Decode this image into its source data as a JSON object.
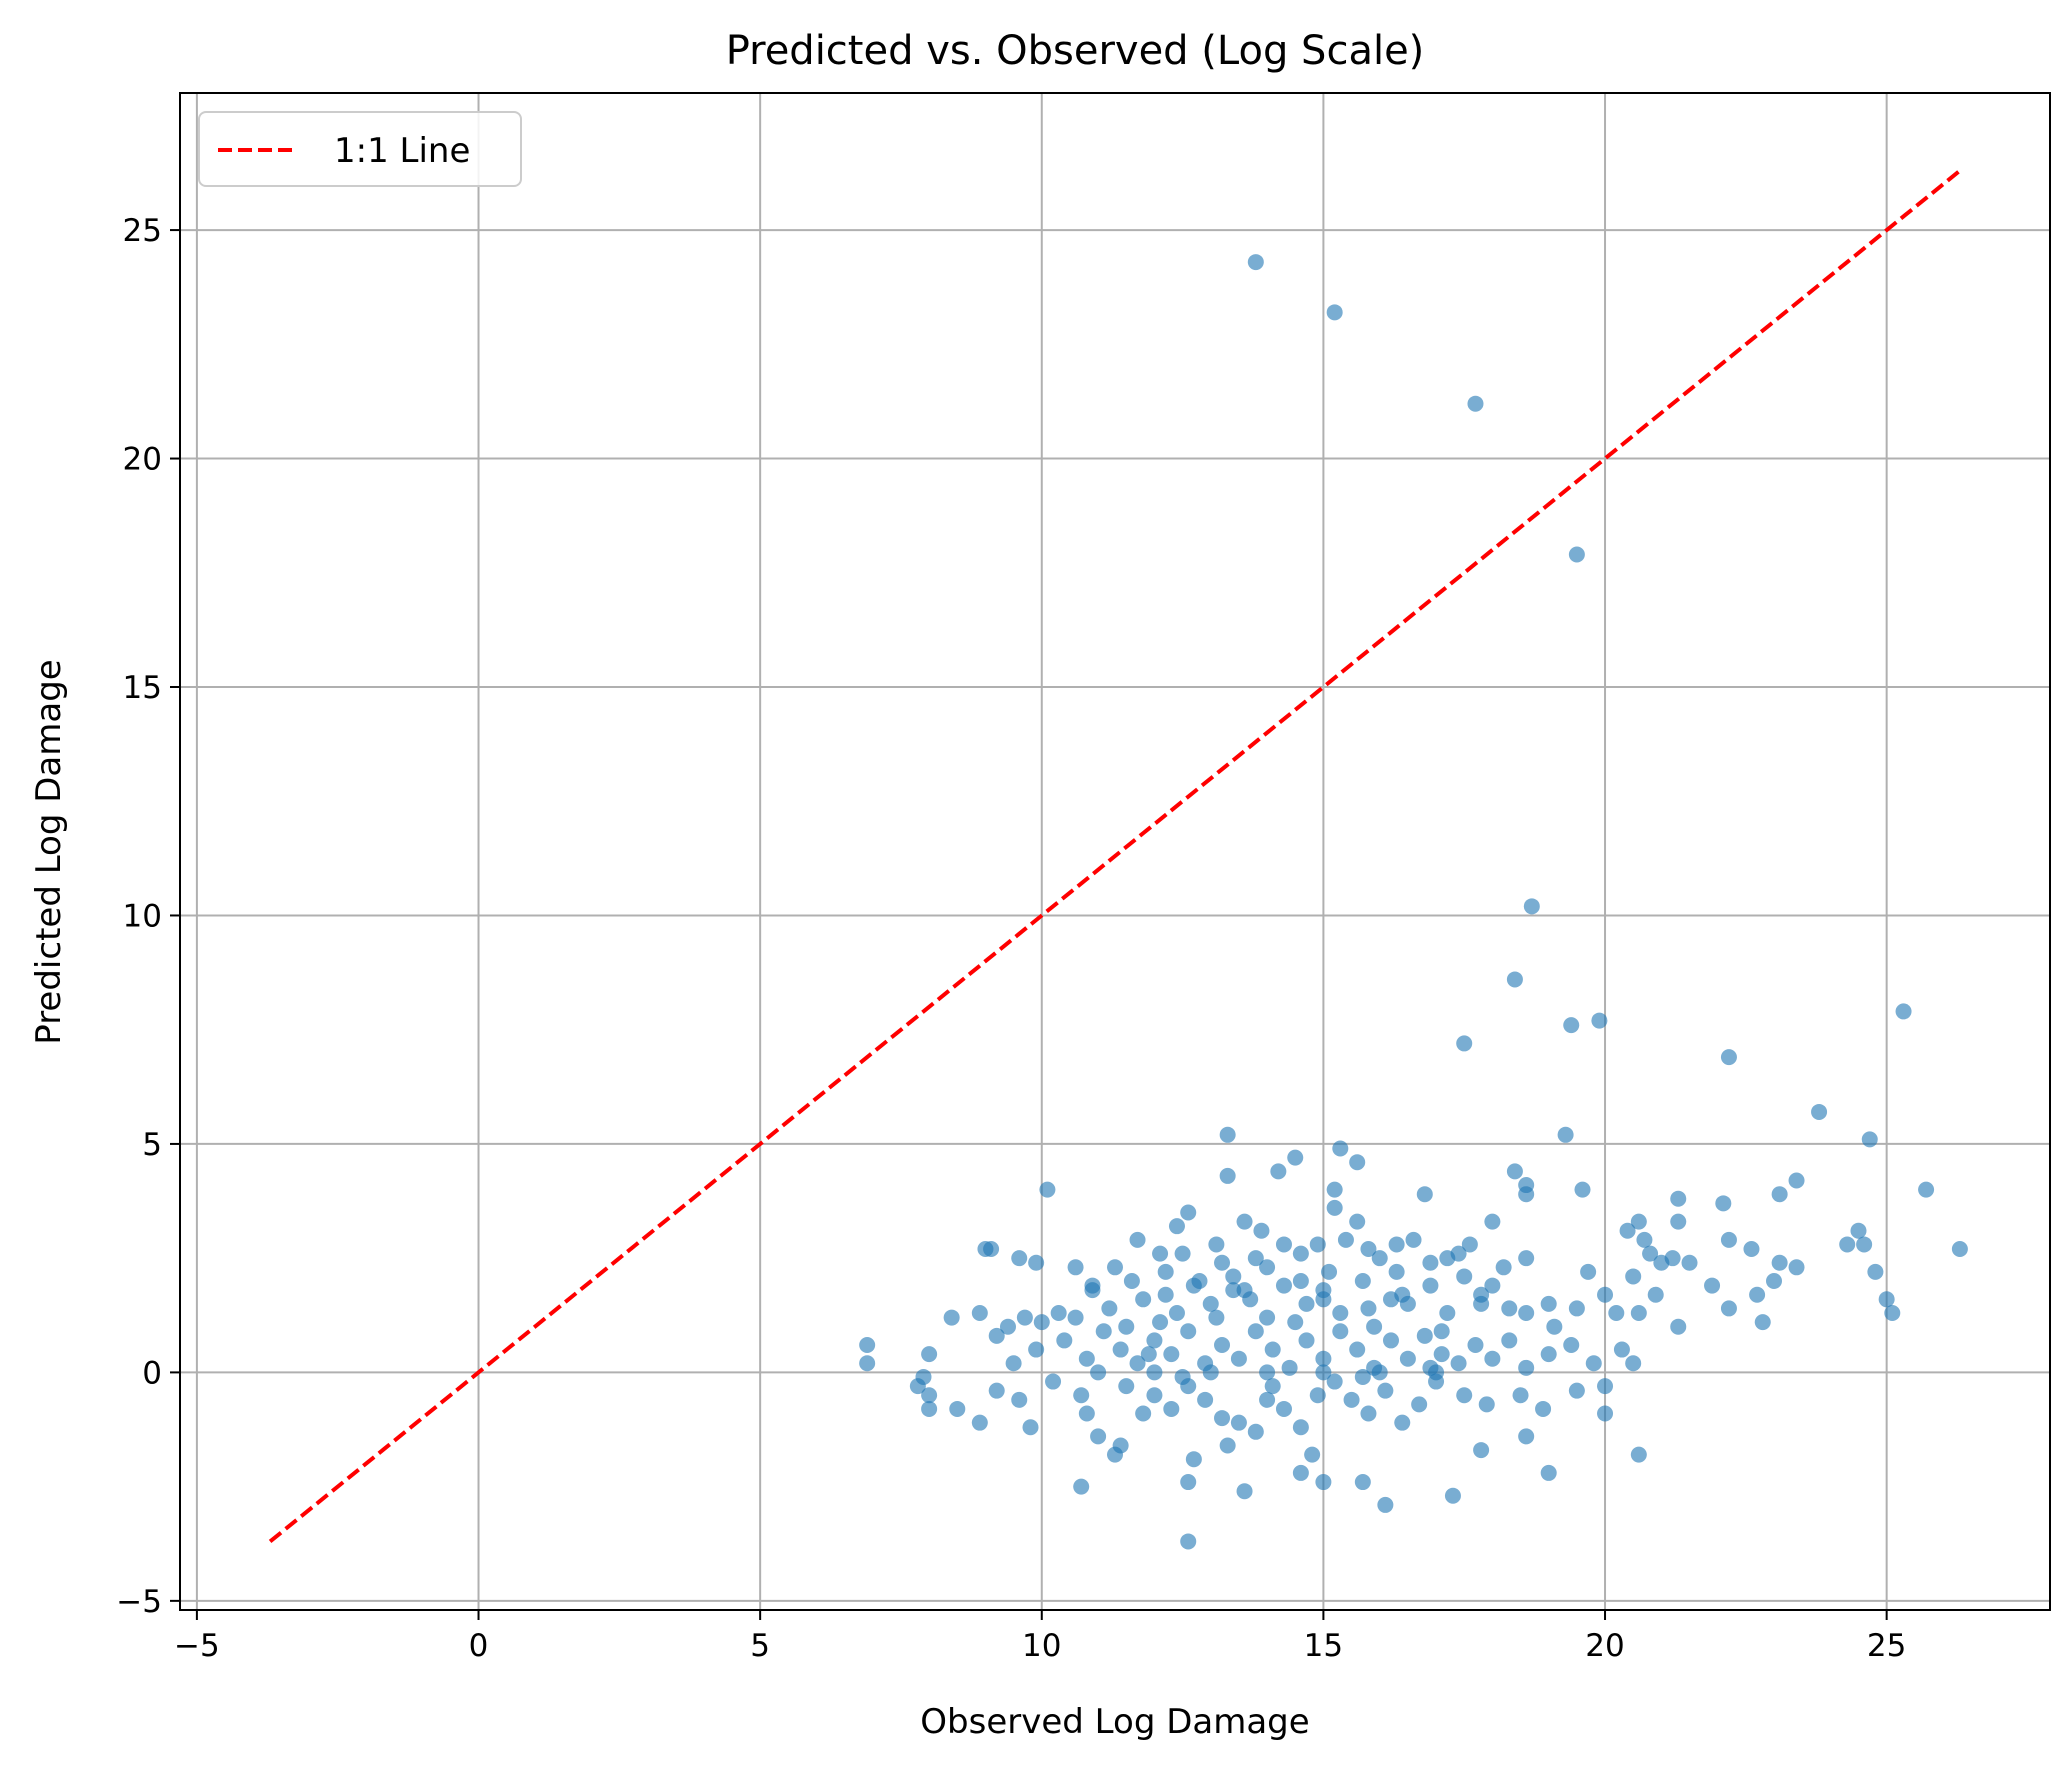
{
  "chart_data": {
    "type": "scatter",
    "title": "Predicted vs. Observed (Log Scale)",
    "xlabel": "Observed Log Damage",
    "ylabel": "Predicted Log Damage",
    "xlim": [
      -5.3,
      27.9
    ],
    "ylim": [
      -5.2,
      28.0
    ],
    "xticks": [
      -5,
      0,
      5,
      10,
      15,
      20,
      25
    ],
    "yticks": [
      -5,
      0,
      5,
      10,
      15,
      20,
      25
    ],
    "grid": true,
    "legend_position": "top-left",
    "reference_line": {
      "name": "1:1 Line",
      "color": "#ff0000",
      "style": "dashed",
      "x": [
        -3.7,
        26.3
      ],
      "y": [
        -3.7,
        26.3
      ]
    },
    "point_color": "#1f77b4",
    "point_alpha": 0.6,
    "series": [
      {
        "values": [
          [
            13.8,
            24.3
          ],
          [
            15.2,
            23.2
          ],
          [
            17.7,
            21.2
          ],
          [
            19.5,
            17.9
          ],
          [
            18.7,
            10.2
          ],
          [
            18.4,
            8.6
          ],
          [
            19.4,
            7.6
          ],
          [
            19.9,
            7.7
          ],
          [
            17.5,
            7.2
          ],
          [
            22.2,
            6.9
          ],
          [
            25.3,
            7.9
          ],
          [
            23.8,
            5.7
          ],
          [
            24.7,
            5.1
          ],
          [
            19.3,
            5.2
          ],
          [
            13.3,
            5.2
          ],
          [
            15.3,
            4.9
          ],
          [
            14.5,
            4.7
          ],
          [
            15.6,
            4.6
          ],
          [
            14.2,
            4.4
          ],
          [
            13.3,
            4.3
          ],
          [
            18.4,
            4.4
          ],
          [
            18.6,
            4.1
          ],
          [
            19.6,
            4.0
          ],
          [
            15.2,
            4.0
          ],
          [
            10.1,
            4.0
          ],
          [
            23.4,
            4.2
          ],
          [
            25.7,
            4.0
          ],
          [
            22.1,
            3.7
          ],
          [
            23.1,
            3.9
          ],
          [
            16.8,
            3.9
          ],
          [
            21.3,
            3.8
          ],
          [
            18.6,
            3.9
          ],
          [
            15.2,
            3.6
          ],
          [
            12.6,
            3.5
          ],
          [
            13.6,
            3.3
          ],
          [
            12.4,
            3.2
          ],
          [
            18.0,
            3.3
          ],
          [
            20.6,
            3.3
          ],
          [
            20.4,
            3.1
          ],
          [
            21.3,
            3.3
          ],
          [
            24.5,
            3.1
          ],
          [
            24.3,
            2.8
          ],
          [
            24.6,
            2.8
          ],
          [
            26.3,
            2.7
          ],
          [
            22.6,
            2.7
          ],
          [
            23.4,
            2.3
          ],
          [
            23.1,
            2.4
          ],
          [
            22.2,
            2.9
          ],
          [
            18.2,
            2.3
          ],
          [
            19.7,
            2.2
          ],
          [
            18.6,
            2.5
          ],
          [
            17.6,
            2.8
          ],
          [
            17.2,
            2.5
          ],
          [
            16.3,
            2.8
          ],
          [
            15.6,
            3.3
          ],
          [
            15.8,
            2.7
          ],
          [
            14.9,
            2.8
          ],
          [
            14.3,
            2.8
          ],
          [
            13.8,
            2.5
          ],
          [
            13.2,
            2.4
          ],
          [
            12.1,
            2.6
          ],
          [
            11.7,
            2.9
          ],
          [
            10.6,
            2.3
          ],
          [
            9.9,
            2.4
          ],
          [
            9.1,
            2.7
          ],
          [
            9.6,
            2.5
          ],
          [
            9.0,
            2.7
          ],
          [
            21.2,
            2.5
          ],
          [
            20.8,
            2.6
          ],
          [
            21.0,
            2.4
          ],
          [
            21.5,
            2.4
          ],
          [
            20.7,
            2.9
          ],
          [
            20.5,
            2.1
          ],
          [
            24.8,
            2.2
          ],
          [
            22.7,
            1.7
          ],
          [
            23.0,
            2.0
          ],
          [
            22.2,
            1.4
          ],
          [
            22.8,
            1.1
          ],
          [
            25.0,
            1.6
          ],
          [
            25.1,
            1.3
          ],
          [
            21.3,
            1.0
          ],
          [
            21.9,
            1.9
          ],
          [
            20.6,
            1.3
          ],
          [
            20.9,
            1.7
          ],
          [
            20.0,
            1.7
          ],
          [
            20.2,
            1.3
          ],
          [
            19.5,
            1.4
          ],
          [
            19.1,
            1.0
          ],
          [
            19.0,
            1.5
          ],
          [
            18.6,
            1.3
          ],
          [
            18.3,
            1.4
          ],
          [
            17.8,
            1.7
          ],
          [
            17.2,
            1.3
          ],
          [
            16.9,
            1.9
          ],
          [
            16.5,
            1.5
          ],
          [
            16.2,
            1.6
          ],
          [
            15.8,
            1.4
          ],
          [
            15.3,
            1.3
          ],
          [
            15.0,
            1.8
          ],
          [
            14.7,
            1.5
          ],
          [
            14.3,
            1.9
          ],
          [
            14.0,
            1.2
          ],
          [
            13.7,
            1.6
          ],
          [
            13.4,
            1.8
          ],
          [
            13.0,
            1.5
          ],
          [
            12.7,
            1.9
          ],
          [
            12.4,
            1.3
          ],
          [
            12.1,
            1.1
          ],
          [
            11.8,
            1.6
          ],
          [
            11.5,
            1.0
          ],
          [
            11.2,
            1.4
          ],
          [
            10.9,
            1.8
          ],
          [
            10.6,
            1.2
          ],
          [
            10.3,
            1.3
          ],
          [
            10.0,
            1.1
          ],
          [
            9.7,
            1.2
          ],
          [
            9.4,
            1.0
          ],
          [
            8.9,
            1.3
          ],
          [
            8.4,
            1.2
          ],
          [
            8.0,
            0.4
          ],
          [
            6.9,
            0.6
          ],
          [
            6.9,
            0.2
          ],
          [
            7.9,
            -0.1
          ],
          [
            7.8,
            -0.3
          ],
          [
            8.0,
            -0.5
          ],
          [
            8.0,
            -0.8
          ],
          [
            8.5,
            -0.8
          ],
          [
            8.9,
            -1.1
          ],
          [
            9.2,
            -0.4
          ],
          [
            9.6,
            -0.6
          ],
          [
            9.8,
            -1.2
          ],
          [
            10.2,
            -0.2
          ],
          [
            10.7,
            -0.5
          ],
          [
            10.8,
            -0.9
          ],
          [
            11.0,
            -1.4
          ],
          [
            11.4,
            -1.6
          ],
          [
            11.5,
            -0.3
          ],
          [
            11.8,
            -0.9
          ],
          [
            12.0,
            -0.5
          ],
          [
            12.3,
            -0.8
          ],
          [
            12.6,
            -0.3
          ],
          [
            12.9,
            -0.6
          ],
          [
            13.2,
            -1.0
          ],
          [
            13.5,
            -1.1
          ],
          [
            13.8,
            -1.3
          ],
          [
            14.0,
            -0.6
          ],
          [
            14.3,
            -0.8
          ],
          [
            14.6,
            -1.2
          ],
          [
            14.9,
            -0.5
          ],
          [
            15.2,
            -0.2
          ],
          [
            15.5,
            -0.6
          ],
          [
            15.8,
            -0.9
          ],
          [
            16.1,
            -0.4
          ],
          [
            16.4,
            -1.1
          ],
          [
            16.7,
            -0.7
          ],
          [
            17.0,
            -0.2
          ],
          [
            17.5,
            -0.5
          ],
          [
            17.9,
            -0.7
          ],
          [
            18.5,
            -0.5
          ],
          [
            18.9,
            -0.8
          ],
          [
            19.5,
            -0.4
          ],
          [
            20.0,
            -0.3
          ],
          [
            20.0,
            -0.9
          ],
          [
            10.7,
            -2.5
          ],
          [
            11.3,
            -1.8
          ],
          [
            12.6,
            -2.4
          ],
          [
            12.6,
            -3.7
          ],
          [
            13.6,
            -2.6
          ],
          [
            14.6,
            -2.2
          ],
          [
            15.0,
            -2.4
          ],
          [
            15.7,
            -2.4
          ],
          [
            16.1,
            -2.9
          ],
          [
            17.3,
            -2.7
          ],
          [
            17.8,
            -1.7
          ],
          [
            18.6,
            -1.4
          ],
          [
            19.0,
            -2.2
          ],
          [
            20.6,
            -1.8
          ],
          [
            14.8,
            -1.8
          ],
          [
            13.3,
            -1.6
          ],
          [
            12.7,
            -1.9
          ],
          [
            9.2,
            0.8
          ],
          [
            9.5,
            0.2
          ],
          [
            9.9,
            0.5
          ],
          [
            10.4,
            0.7
          ],
          [
            10.8,
            0.3
          ],
          [
            11.1,
            0.9
          ],
          [
            11.4,
            0.5
          ],
          [
            11.7,
            0.2
          ],
          [
            12.0,
            0.7
          ],
          [
            12.3,
            0.4
          ],
          [
            12.6,
            0.9
          ],
          [
            12.9,
            0.2
          ],
          [
            13.2,
            0.6
          ],
          [
            13.5,
            0.3
          ],
          [
            13.8,
            0.9
          ],
          [
            14.1,
            0.5
          ],
          [
            14.4,
            0.1
          ],
          [
            14.7,
            0.7
          ],
          [
            15.0,
            0.3
          ],
          [
            15.3,
            0.9
          ],
          [
            15.6,
            0.5
          ],
          [
            15.9,
            0.1
          ],
          [
            16.2,
            0.7
          ],
          [
            16.5,
            0.3
          ],
          [
            16.8,
            0.8
          ],
          [
            17.1,
            0.4
          ],
          [
            17.4,
            0.2
          ],
          [
            17.7,
            0.6
          ],
          [
            18.0,
            0.3
          ],
          [
            18.3,
            0.7
          ],
          [
            18.6,
            0.1
          ],
          [
            19.0,
            0.4
          ],
          [
            19.4,
            0.6
          ],
          [
            19.8,
            0.2
          ],
          [
            20.3,
            0.5
          ],
          [
            20.5,
            0.2
          ],
          [
            11.0,
            0.0
          ],
          [
            12.0,
            0.0
          ],
          [
            13.0,
            0.0
          ],
          [
            14.0,
            0.0
          ],
          [
            15.0,
            0.0
          ],
          [
            16.0,
            0.0
          ],
          [
            17.0,
            0.0
          ],
          [
            11.6,
            2.0
          ],
          [
            12.2,
            2.2
          ],
          [
            12.8,
            2.0
          ],
          [
            13.4,
            2.1
          ],
          [
            14.0,
            2.3
          ],
          [
            14.6,
            2.0
          ],
          [
            15.1,
            2.2
          ],
          [
            15.7,
            2.0
          ],
          [
            16.3,
            2.2
          ],
          [
            16.9,
            2.4
          ],
          [
            17.5,
            2.1
          ],
          [
            18.0,
            1.9
          ],
          [
            10.9,
            1.9
          ],
          [
            11.3,
            2.3
          ],
          [
            12.5,
            2.6
          ],
          [
            13.1,
            2.8
          ],
          [
            13.9,
            3.1
          ],
          [
            14.6,
            2.6
          ],
          [
            15.4,
            2.9
          ],
          [
            16.0,
            2.5
          ],
          [
            16.6,
            2.9
          ],
          [
            17.4,
            2.6
          ],
          [
            12.2,
            1.7
          ],
          [
            13.6,
            1.8
          ],
          [
            15.0,
            1.6
          ],
          [
            16.4,
            1.7
          ],
          [
            17.8,
            1.5
          ],
          [
            11.9,
            0.4
          ],
          [
            13.1,
            1.2
          ],
          [
            14.5,
            1.1
          ],
          [
            15.9,
            1.0
          ],
          [
            17.1,
            0.9
          ],
          [
            12.5,
            -0.1
          ],
          [
            14.1,
            -0.3
          ],
          [
            15.7,
            -0.1
          ],
          [
            16.9,
            0.1
          ]
        ]
      }
    ]
  }
}
